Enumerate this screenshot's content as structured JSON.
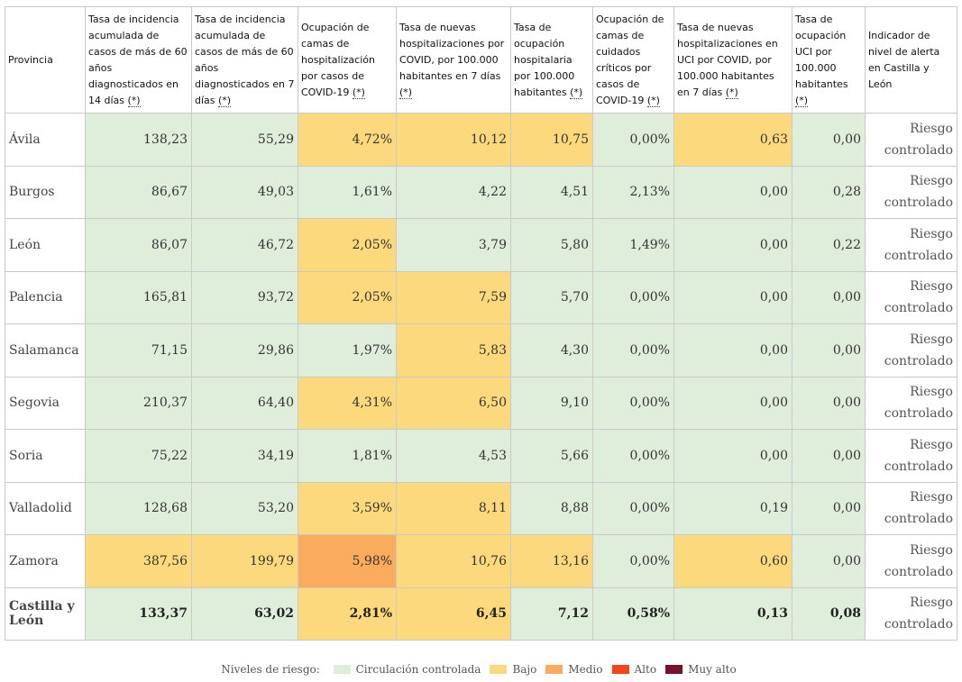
{
  "headers": {
    "provincia": "Provincia",
    "col1": "Tasa de incidencia acumulada de casos de más de 60 años diagnosticados en 14 días",
    "col2": "Tasa de incidencia acumulada de casos de más de 60 años diagnosticados en 7 días",
    "col3": "Ocupación de camas de hospitalización por casos de COVID-19",
    "col4": "Tasa de nuevas hospitalizaciones por COVID, por 100.000 habitantes en 7 días",
    "col5": "Tasa de ocupación hospitalaria por 100.000 habitantes",
    "col6": "Ocupación de camas de cuidados críticos por casos de COVID-19",
    "col7": "Tasa de nuevas hospitalizaciones en UCI por COVID, por 100.000 habitantes en 7 días",
    "col8": "Tasa de ocupación UCI por 100.000 habitantes",
    "indicador": "Indicador de nivel de alerta en Castilla y León",
    "ref_mark": "(*)"
  },
  "rows": [
    {
      "provincia": "Ávila",
      "values": [
        "138,23",
        "55,29",
        "4,72%",
        "10,12",
        "10,75",
        "0,00%",
        "0,63",
        "0,00"
      ],
      "levels": [
        "c",
        "c",
        "b",
        "b",
        "b",
        "c",
        "b",
        "c"
      ],
      "indicator": "Riesgo controlado"
    },
    {
      "provincia": "Burgos",
      "values": [
        "86,67",
        "49,03",
        "1,61%",
        "4,22",
        "4,51",
        "2,13%",
        "0,00",
        "0,28"
      ],
      "levels": [
        "c",
        "c",
        "c",
        "c",
        "c",
        "c",
        "c",
        "c"
      ],
      "indicator": "Riesgo controlado"
    },
    {
      "provincia": "León",
      "values": [
        "86,07",
        "46,72",
        "2,05%",
        "3,79",
        "5,80",
        "1,49%",
        "0,00",
        "0,22"
      ],
      "levels": [
        "c",
        "c",
        "b",
        "c",
        "c",
        "c",
        "c",
        "c"
      ],
      "indicator": "Riesgo controlado"
    },
    {
      "provincia": "Palencia",
      "values": [
        "165,81",
        "93,72",
        "2,05%",
        "7,59",
        "5,70",
        "0,00%",
        "0,00",
        "0,00"
      ],
      "levels": [
        "c",
        "c",
        "b",
        "b",
        "c",
        "c",
        "c",
        "c"
      ],
      "indicator": "Riesgo controlado"
    },
    {
      "provincia": "Salamanca",
      "values": [
        "71,15",
        "29,86",
        "1,97%",
        "5,83",
        "4,30",
        "0,00%",
        "0,00",
        "0,00"
      ],
      "levels": [
        "c",
        "c",
        "c",
        "b",
        "c",
        "c",
        "c",
        "c"
      ],
      "indicator": "Riesgo controlado"
    },
    {
      "provincia": "Segovia",
      "values": [
        "210,37",
        "64,40",
        "4,31%",
        "6,50",
        "9,10",
        "0,00%",
        "0,00",
        "0,00"
      ],
      "levels": [
        "c",
        "c",
        "b",
        "b",
        "c",
        "c",
        "c",
        "c"
      ],
      "indicator": "Riesgo controlado"
    },
    {
      "provincia": "Soria",
      "values": [
        "75,22",
        "34,19",
        "1,81%",
        "4,53",
        "5,66",
        "0,00%",
        "0,00",
        "0,00"
      ],
      "levels": [
        "c",
        "c",
        "c",
        "c",
        "c",
        "c",
        "c",
        "c"
      ],
      "indicator": "Riesgo controlado"
    },
    {
      "provincia": "Valladolid",
      "values": [
        "128,68",
        "53,20",
        "3,59%",
        "8,11",
        "8,88",
        "0,00%",
        "0,19",
        "0,00"
      ],
      "levels": [
        "c",
        "c",
        "b",
        "b",
        "c",
        "c",
        "c",
        "c"
      ],
      "indicator": "Riesgo controlado"
    },
    {
      "provincia": "Zamora",
      "values": [
        "387,56",
        "199,79",
        "5,98%",
        "10,76",
        "13,16",
        "0,00%",
        "0,60",
        "0,00"
      ],
      "levels": [
        "b",
        "b",
        "m",
        "b",
        "b",
        "c",
        "b",
        "c"
      ],
      "indicator": "Riesgo controlado"
    }
  ],
  "total": {
    "provincia": "Castilla y León",
    "values": [
      "133,37",
      "63,02",
      "2,81%",
      "6,45",
      "7,12",
      "0,58%",
      "0,13",
      "0,08"
    ],
    "levels": [
      "c",
      "c",
      "b",
      "b",
      "c",
      "c",
      "c",
      "c"
    ],
    "indicator": "Riesgo controlado"
  },
  "legend": {
    "title": "Niveles de riesgo:",
    "items": [
      {
        "label": "Circulación controlada",
        "color": "#dfeedb"
      },
      {
        "label": "Bajo",
        "color": "#fdd97e"
      },
      {
        "label": "Medio",
        "color": "#fbab5d"
      },
      {
        "label": "Alto",
        "color": "#f2461a"
      },
      {
        "label": "Muy alto",
        "color": "#7a0f2e"
      }
    ]
  }
}
